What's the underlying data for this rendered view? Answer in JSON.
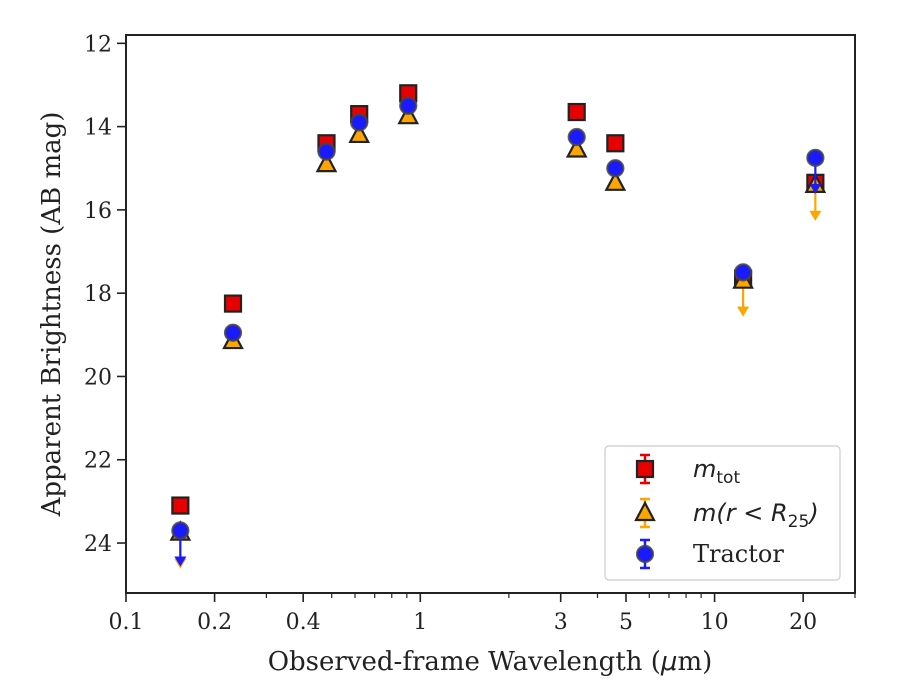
{
  "chart_data": {
    "type": "scatter",
    "xlabel_parts": {
      "prefix": "Observed-frame Wavelength (",
      "mu": "μ",
      "suffix": "m)"
    },
    "ylabel": "Apparent Brightness (AB mag)",
    "xscale": "log",
    "xlim": [
      0.1,
      30
    ],
    "ylim": [
      25.2,
      11.8
    ],
    "y_inverted": true,
    "x_ticks": [
      0.1,
      0.2,
      0.4,
      1,
      3,
      5,
      10,
      20
    ],
    "x_tick_labels": [
      "0.1",
      "0.2",
      "0.4",
      "1",
      "3",
      "5",
      "10",
      "20"
    ],
    "y_ticks": [
      12,
      14,
      16,
      18,
      20,
      22,
      24
    ],
    "y_tick_labels": [
      "12",
      "14",
      "16",
      "18",
      "20",
      "22",
      "24"
    ],
    "legend_position": "lower-right",
    "series": [
      {
        "key": "mtot",
        "legend": {
          "base": "m",
          "sub": "tot",
          "rest": ""
        },
        "marker": "square",
        "color": "#e60000",
        "points": [
          {
            "x": 0.153,
            "y": 23.1
          },
          {
            "x": 0.231,
            "y": 18.25
          },
          {
            "x": 0.48,
            "y": 14.4
          },
          {
            "x": 0.62,
            "y": 13.7
          },
          {
            "x": 0.91,
            "y": 13.2
          },
          {
            "x": 3.4,
            "y": 13.65
          },
          {
            "x": 4.6,
            "y": 14.4
          },
          {
            "x": 12.5,
            "y": 17.65
          },
          {
            "x": 22,
            "y": 15.35
          }
        ]
      },
      {
        "key": "mr25",
        "legend": {
          "base": "m",
          "mid": "(r < R",
          "sub": "25",
          "rest": ")"
        },
        "marker": "triangle",
        "color": "#ffa500",
        "points": [
          {
            "x": 0.153,
            "y": 23.75,
            "upper_limit": true
          },
          {
            "x": 0.231,
            "y": 19.15
          },
          {
            "x": 0.48,
            "y": 14.9
          },
          {
            "x": 0.62,
            "y": 14.2
          },
          {
            "x": 0.91,
            "y": 13.75
          },
          {
            "x": 3.4,
            "y": 14.55
          },
          {
            "x": 4.6,
            "y": 15.35
          },
          {
            "x": 12.5,
            "y": 17.7,
            "upper_limit": true
          },
          {
            "x": 22,
            "y": 15.4,
            "upper_limit": true
          }
        ]
      },
      {
        "key": "tractor",
        "legend": {
          "text": "Tractor"
        },
        "marker": "circle",
        "color": "#1a1aff",
        "points": [
          {
            "x": 0.153,
            "y": 23.7,
            "upper_limit": true
          },
          {
            "x": 0.231,
            "y": 18.95
          },
          {
            "x": 0.48,
            "y": 14.6
          },
          {
            "x": 0.62,
            "y": 13.9
          },
          {
            "x": 0.91,
            "y": 13.5
          },
          {
            "x": 3.4,
            "y": 14.25
          },
          {
            "x": 4.6,
            "y": 15.0
          },
          {
            "x": 12.5,
            "y": 17.5
          },
          {
            "x": 22,
            "y": 14.75,
            "upper_limit": true
          }
        ]
      }
    ]
  }
}
